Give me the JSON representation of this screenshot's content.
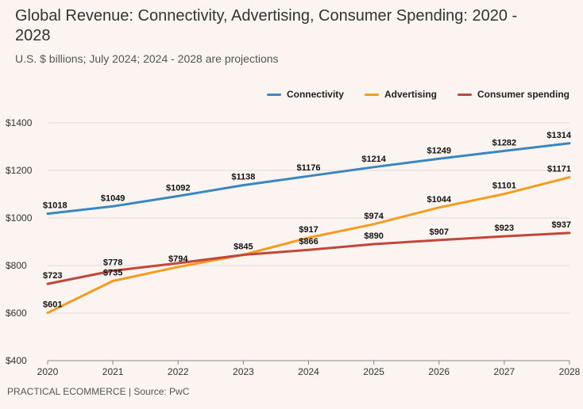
{
  "header": {
    "title": "Global Revenue: Connectivity, Advertising, Consumer Spending: 2020 - 2028",
    "subtitle": "U.S. $ billions; July 2024; 2024 - 2028 are projections"
  },
  "footer": {
    "source": "PRACTICAL ECOMMERCE | Source: PwC"
  },
  "chart_data": {
    "type": "line",
    "title": "Global Revenue: Connectivity, Advertising, Consumer Spending: 2020 - 2028",
    "subtitle": "U.S. $ billions; July 2024; 2024 - 2028 are projections",
    "xlabel": "",
    "ylabel": "",
    "x": [
      "2020",
      "2021",
      "2022",
      "2023",
      "2024",
      "2025",
      "2026",
      "2027",
      "2028"
    ],
    "ylim": [
      400,
      1400
    ],
    "yticks": [
      400,
      600,
      800,
      1000,
      1200,
      1400
    ],
    "ytick_labels": [
      "$400",
      "$600",
      "$800",
      "$1000",
      "$1200",
      "$1400"
    ],
    "grid": true,
    "legend_position": "top-right",
    "series": [
      {
        "name": "Connectivity",
        "color": "#3a87c0",
        "values": [
          1018,
          1049,
          1092,
          1138,
          1176,
          1214,
          1249,
          1282,
          1314
        ],
        "labels": [
          "$1018",
          "$1049",
          "$1092",
          "$1138",
          "$1176",
          "$1214",
          "$1249",
          "$1282",
          "$1314"
        ]
      },
      {
        "name": "Advertising",
        "color": "#f39c1e",
        "values": [
          601,
          735,
          794,
          845,
          917,
          974,
          1044,
          1101,
          1171
        ],
        "labels": [
          "$601",
          "$735",
          "$794",
          "$845",
          "$917",
          "$974",
          "$1044",
          "$1101",
          "$1171"
        ]
      },
      {
        "name": "Consumer spending",
        "color": "#c0473b",
        "values": [
          723,
          778,
          810,
          845,
          866,
          890,
          907,
          923,
          937
        ],
        "labels": [
          "$723",
          "$778",
          "",
          "",
          "$866",
          "$890",
          "$907",
          "$923",
          "$937"
        ]
      }
    ]
  }
}
